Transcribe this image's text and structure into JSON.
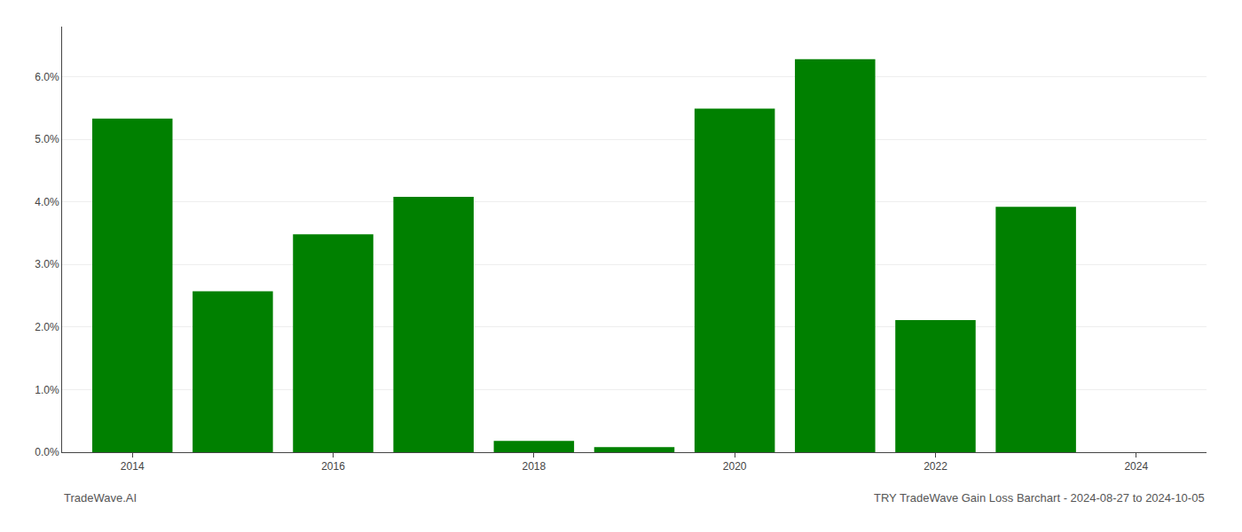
{
  "chart_data": {
    "type": "bar",
    "title": "TRY TradeWave Gain Loss Barchart - 2024-08-27 to 2024-10-05",
    "annotations": [
      "TradeWave.AI"
    ],
    "x": [
      2014,
      2015,
      2016,
      2017,
      2018,
      2019,
      2020,
      2021,
      2022,
      2023
    ],
    "values": [
      0.0533,
      0.0257,
      0.0348,
      0.0408,
      0.0018,
      0.0008,
      0.0549,
      0.0628,
      0.0211,
      0.0392
    ],
    "color": "#008000",
    "xlim": [
      2013.3,
      2024.7
    ],
    "xticks": [
      2014,
      2016,
      2018,
      2020,
      2022,
      2024
    ],
    "ylim": [
      0,
      0.068
    ],
    "yticks": [
      {
        "value": 0,
        "label": "0.0%"
      },
      {
        "value": 0.01,
        "label": "1.0%"
      },
      {
        "value": 0.02,
        "label": "2.0%"
      },
      {
        "value": 0.03,
        "label": "3.0%"
      },
      {
        "value": 0.04,
        "label": "4.0%"
      },
      {
        "value": 0.05,
        "label": "5.0%"
      },
      {
        "value": 0.06,
        "label": "6.0%"
      }
    ],
    "grid": true
  }
}
